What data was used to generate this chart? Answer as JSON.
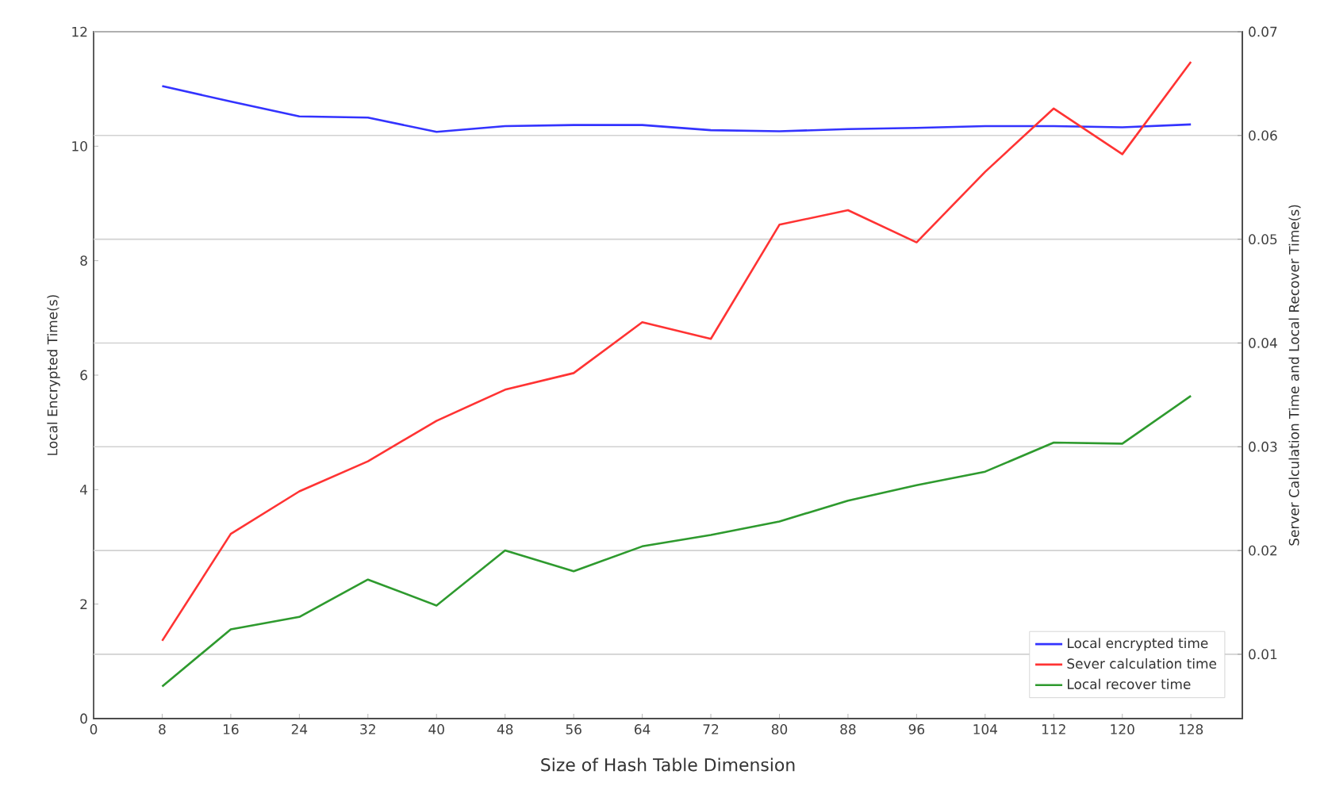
{
  "chart_data": {
    "type": "line",
    "xlabel": "Size of Hash Table Dimension",
    "ylabel": "Local Encrypted Time(s)",
    "y2label": "Server Calculation Time and Local Recover Time(s)",
    "x": [
      8,
      16,
      24,
      32,
      40,
      48,
      56,
      64,
      72,
      80,
      88,
      96,
      104,
      112,
      120,
      128
    ],
    "series": [
      {
        "name": "Local encrypted time",
        "color": "#3333ff",
        "values": [
          11.05,
          10.78,
          10.52,
          10.5,
          10.25,
          10.35,
          10.37,
          10.37,
          10.28,
          10.26,
          10.3,
          10.32,
          10.35,
          10.35,
          10.33,
          10.38
        ]
      },
      {
        "name": "Sever calculation time",
        "color": "#ff3333",
        "axis": "y2",
        "values": [
          0.0113,
          0.0216,
          0.0257,
          0.0286,
          0.0325,
          0.0355,
          0.0371,
          0.042,
          0.0404,
          0.0514,
          0.0528,
          0.0497,
          0.0565,
          0.0626,
          0.0582,
          0.0671
        ]
      },
      {
        "name": "Local recover time",
        "color": "#2e9a2e",
        "axis": "y2",
        "values": [
          0.0069,
          0.0124,
          0.0136,
          0.0172,
          0.0147,
          0.02,
          0.018,
          0.0204,
          0.0215,
          0.0228,
          0.0248,
          0.0263,
          0.0276,
          0.0304,
          0.0303,
          0.0349
        ]
      }
    ],
    "xlim": [
      0,
      134
    ],
    "xticks": [
      0,
      8,
      16,
      24,
      32,
      40,
      48,
      56,
      64,
      72,
      80,
      88,
      96,
      104,
      112,
      120,
      128
    ],
    "ylim": [
      0,
      12
    ],
    "yticks": [
      0,
      2,
      4,
      6,
      8,
      10,
      12
    ],
    "y2lim": [
      0.0038,
      0.07
    ],
    "y2ticks": [
      0.01,
      0.02,
      0.03,
      0.04,
      0.05,
      0.06,
      0.07
    ],
    "grid": "y2",
    "legend": "bottom right",
    "marker": "none",
    "line_style": "solid"
  }
}
